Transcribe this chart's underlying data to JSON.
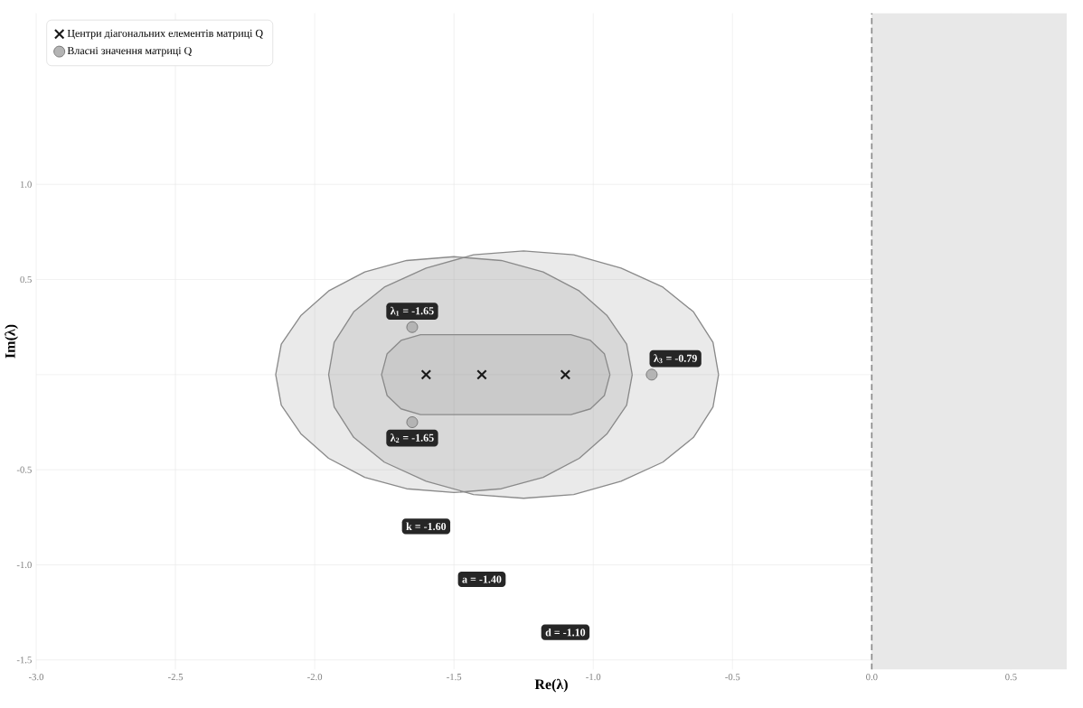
{
  "chart_data": {
    "type": "scatter",
    "xlabel": "Re(λ)",
    "ylabel": "Im(λ)",
    "xlim": [
      -3.0,
      0.7
    ],
    "ylim": [
      -1.55,
      1.9
    ],
    "xticks": [
      {
        "value": -3,
        "label": "-3.0"
      },
      -2.5,
      {
        "value": -2,
        "label": "-2.0"
      },
      -1.5,
      {
        "value": -1,
        "label": "-1.0"
      },
      -0.5,
      {
        "value": 0,
        "label": "0.0"
      },
      0.5
    ],
    "yticks": [
      {
        "value": -1.5,
        "label": "-1.5"
      },
      {
        "value": -1,
        "label": "-1.0"
      },
      {
        "value": -0.5,
        "label": "-0.5"
      },
      {
        "value": 0,
        "label": null
      },
      {
        "value": 0.5,
        "label": "0.5"
      },
      {
        "value": 1,
        "label": "1.0"
      }
    ],
    "grid": true,
    "legend": "top left",
    "series": [
      {
        "type": "area",
        "color": "#8a8a8a",
        "marker": "none",
        "x": [
          -0.86,
          -0.88,
          -0.95,
          -1.05,
          -1.18,
          -1.33,
          -1.5,
          -1.67,
          -1.82,
          -1.95,
          -2.05,
          -2.12,
          -2.14,
          -2.12,
          -2.05,
          -1.95,
          -1.82,
          -1.67,
          -1.5,
          -1.33,
          -1.18,
          -1.05,
          -0.95,
          -0.88,
          -0.86
        ],
        "values": [
          0,
          0.16,
          0.31,
          0.44,
          0.54,
          0.6,
          0.62,
          0.6,
          0.54,
          0.44,
          0.31,
          0.16,
          0,
          -0.16,
          -0.31,
          -0.44,
          -0.54,
          -0.6,
          -0.62,
          -0.6,
          -0.54,
          -0.44,
          -0.31,
          -0.16,
          0
        ]
      },
      {
        "type": "area",
        "color": "#8a8a8a",
        "marker": "none",
        "x": [
          -0.55,
          -0.57,
          -0.64,
          -0.75,
          -0.9,
          -1.07,
          -1.25,
          -1.43,
          -1.6,
          -1.75,
          -1.86,
          -1.93,
          -1.95,
          -1.93,
          -1.86,
          -1.75,
          -1.6,
          -1.43,
          -1.25,
          -1.07,
          -0.9,
          -0.75,
          -0.64,
          -0.57,
          -0.55
        ],
        "values": [
          0,
          0.17,
          0.33,
          0.46,
          0.56,
          0.63,
          0.65,
          0.63,
          0.56,
          0.46,
          0.33,
          0.17,
          0,
          -0.17,
          -0.33,
          -0.46,
          -0.56,
          -0.63,
          -0.65,
          -0.63,
          -0.56,
          -0.46,
          -0.33,
          -0.17,
          0
        ]
      },
      {
        "type": "area",
        "color": "#8a8a8a",
        "marker": "none",
        "x": [
          -0.94,
          -0.96,
          -1.01,
          -1.08,
          -1.62,
          -1.69,
          -1.74,
          -1.76,
          -1.74,
          -1.69,
          -1.62,
          -1.08,
          -1.01,
          -0.96,
          -0.94
        ],
        "values": [
          0,
          0.11,
          0.18,
          0.21,
          0.21,
          0.18,
          0.11,
          0,
          -0.11,
          -0.18,
          -0.21,
          -0.21,
          -0.18,
          -0.11,
          0
        ]
      },
      {
        "name": "Центри діагональних елементів матриці Q",
        "color": "#1a1a1a",
        "marker": "cross",
        "x": [
          -1.6,
          -1.4,
          -1.1
        ],
        "values": [
          0,
          0,
          0
        ]
      },
      {
        "name": "Власні значення матриці Q",
        "color": "#b4b4b4",
        "marker": "circle",
        "x": [
          -1.65,
          -1.65,
          -0.79
        ],
        "values": [
          0.25,
          -0.25,
          0
        ],
        "value_labels": [
          "λ$_{1}$ = -1.65",
          "λ$_{2}$ = -1.65",
          "λ$_{3}$ = -0.79"
        ]
      }
    ],
    "annotations": [
      "k = -1.60",
      "a = -1.40",
      "d = -1.10"
    ],
    "ref_lines": [
      {
        "axis": "x",
        "value": 0,
        "color": "#888888",
        "line_style": "dashed"
      }
    ],
    "bands": [
      {
        "axis": "x",
        "from": 0,
        "to": 0.7,
        "color": "#e8e8e8"
      }
    ]
  }
}
